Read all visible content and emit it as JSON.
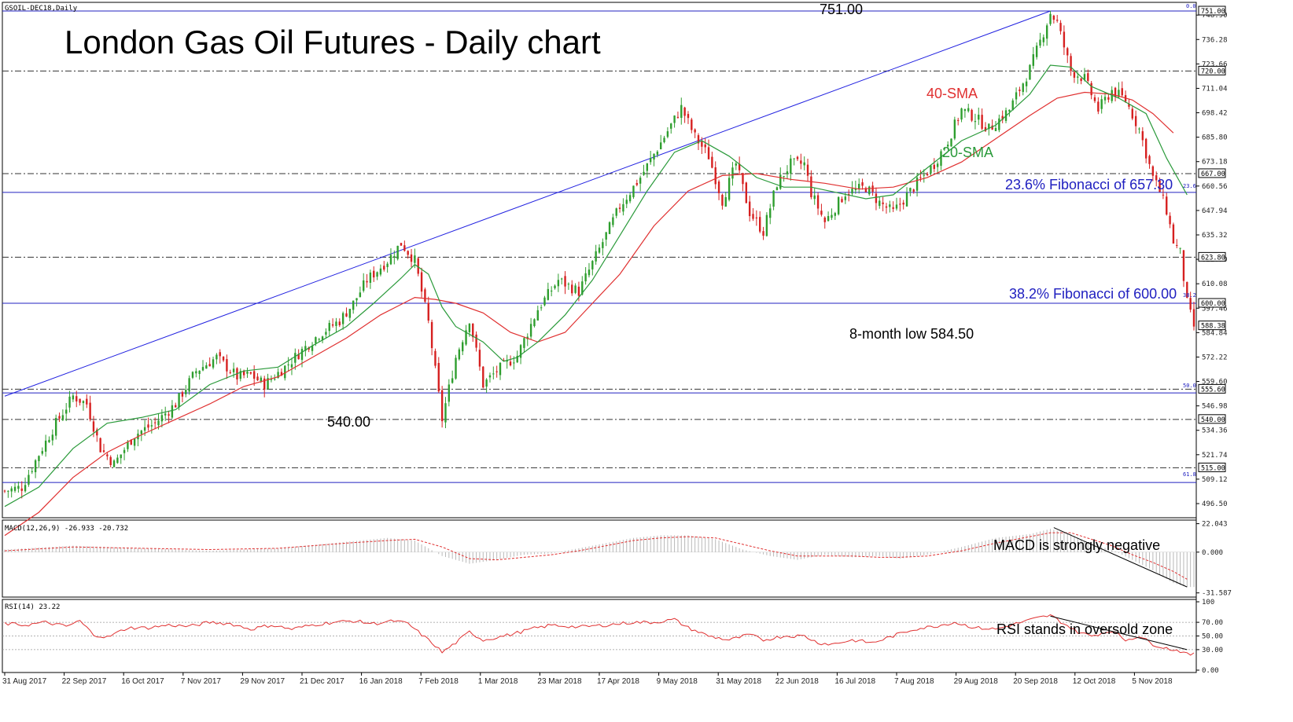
{
  "header": {
    "symbol_label": "GSOIL-DEC18,Daily",
    "title": "London Gas Oil Futures - Daily chart",
    "macd_label": "MACD(12,26,9) -26.933 -20.732",
    "rsi_label": "RSI(14) 23.22"
  },
  "annotations": {
    "high": "751.00",
    "low_feb": "540.00",
    "low_recent": "8-month low 584.50",
    "sma40": "40-SMA",
    "sma20": "20-SMA",
    "fib236": "23.6% Fibonacci of 657.30",
    "fib382": "38.2% Fibonacci of 600.00",
    "macd_note": "MACD is strongly negative",
    "rsi_note": "RSI stands in oversold zone",
    "fib_tag_236": "23.6",
    "fib_tag_382": "38.2",
    "fib_tag_500": "50.0",
    "fib_tag_618": "61.8",
    "fib_tag_0": "0.0"
  },
  "colors": {
    "bull": "#2e9e2e",
    "bear": "#d62020",
    "sma20": "#2a9a3a",
    "sma40": "#e03030",
    "trend": "#2020e0",
    "fib": "#2020c0",
    "macd_signal": "#e03030",
    "rsi": "#e03030",
    "hist": "#b8b8b8"
  },
  "chart_data": [
    {
      "type": "candlestick",
      "title": "London Gas Oil Futures - Daily chart",
      "ylim": [
        490,
        754
      ],
      "price_ticks": [
        "748.90",
        "736.28",
        "723.66",
        "711.04",
        "698.42",
        "685.80",
        "673.18",
        "660.56",
        "647.94",
        "635.32",
        "622.70",
        "610.08",
        "597.46",
        "584.84",
        "572.22",
        "559.60",
        "546.98",
        "534.36",
        "521.74",
        "509.12",
        "496.50"
      ],
      "price_tags": [
        "751.00",
        "720.00",
        "667.00",
        "623.80",
        "600.00",
        "588.38",
        "555.60",
        "540.00",
        "515.00"
      ],
      "x_ticks": [
        "31 Aug 2017",
        "22 Sep 2017",
        "16 Oct 2017",
        "7 Nov 2017",
        "29 Nov 2017",
        "21 Dec 2017",
        "16 Jan 2018",
        "7 Feb 2018",
        "1 Mar 2018",
        "23 Mar 2018",
        "17 Apr 2018",
        "9 May 2018",
        "31 May 2018",
        "22 Jun 2018",
        "16 Jul 2018",
        "7 Aug 2018",
        "29 Aug 2018",
        "20 Sep 2018",
        "12 Oct 2018",
        "5 Nov 2018"
      ],
      "horizontal_levels": [
        751.0,
        720.0,
        667.0,
        623.8,
        600.0,
        555.6,
        540.0,
        515.0
      ],
      "fibonacci_levels": [
        {
          "label": "23.6",
          "value": 657.3
        },
        {
          "label": "38.2",
          "value": 600.0
        },
        {
          "label": "50.0",
          "value": 553.7
        },
        {
          "label": "61.8",
          "value": 507.4
        }
      ],
      "close_path": [
        [
          0,
          503
        ],
        [
          5,
          505
        ],
        [
          10,
          522
        ],
        [
          15,
          538
        ],
        [
          20,
          552
        ],
        [
          24,
          548
        ],
        [
          28,
          525
        ],
        [
          32,
          517
        ],
        [
          38,
          532
        ],
        [
          44,
          538
        ],
        [
          50,
          548
        ],
        [
          56,
          565
        ],
        [
          62,
          572
        ],
        [
          68,
          562
        ],
        [
          72,
          563
        ],
        [
          76,
          558
        ],
        [
          82,
          567
        ],
        [
          86,
          574
        ],
        [
          92,
          584
        ],
        [
          98,
          591
        ],
        [
          102,
          600
        ],
        [
          106,
          612
        ],
        [
          112,
          622
        ],
        [
          116,
          631
        ],
        [
          120,
          622
        ],
        [
          124,
          590
        ],
        [
          126,
          565
        ],
        [
          128,
          540
        ],
        [
          132,
          572
        ],
        [
          136,
          592
        ],
        [
          140,
          558
        ],
        [
          144,
          565
        ],
        [
          150,
          573
        ],
        [
          156,
          597
        ],
        [
          162,
          612
        ],
        [
          168,
          606
        ],
        [
          174,
          628
        ],
        [
          180,
          650
        ],
        [
          186,
          665
        ],
        [
          192,
          683
        ],
        [
          198,
          701
        ],
        [
          202,
          686
        ],
        [
          206,
          676
        ],
        [
          210,
          653
        ],
        [
          214,
          672
        ],
        [
          218,
          647
        ],
        [
          222,
          637
        ],
        [
          226,
          662
        ],
        [
          230,
          672
        ],
        [
          234,
          672
        ],
        [
          236,
          657
        ],
        [
          240,
          642
        ],
        [
          246,
          657
        ],
        [
          252,
          660
        ],
        [
          256,
          652
        ],
        [
          260,
          647
        ],
        [
          266,
          660
        ],
        [
          272,
          672
        ],
        [
          276,
          684
        ],
        [
          280,
          700
        ],
        [
          284,
          696
        ],
        [
          288,
          690
        ],
        [
          294,
          700
        ],
        [
          300,
          721
        ],
        [
          304,
          740
        ],
        [
          306,
          750
        ],
        [
          308,
          745
        ],
        [
          312,
          720
        ],
        [
          316,
          716
        ],
        [
          320,
          700
        ],
        [
          324,
          710
        ],
        [
          328,
          705
        ],
        [
          332,
          690
        ],
        [
          336,
          665
        ],
        [
          338,
          658
        ],
        [
          340,
          648
        ],
        [
          342,
          632
        ],
        [
          344,
          626
        ],
        [
          346,
          600
        ],
        [
          348,
          588
        ]
      ],
      "sma20": [
        [
          0,
          495
        ],
        [
          10,
          505
        ],
        [
          20,
          525
        ],
        [
          30,
          538
        ],
        [
          40,
          541
        ],
        [
          50,
          545
        ],
        [
          60,
          558
        ],
        [
          70,
          565
        ],
        [
          80,
          567
        ],
        [
          90,
          578
        ],
        [
          100,
          588
        ],
        [
          108,
          600
        ],
        [
          116,
          613
        ],
        [
          120,
          620
        ],
        [
          124,
          615
        ],
        [
          128,
          598
        ],
        [
          132,
          588
        ],
        [
          140,
          580
        ],
        [
          146,
          570
        ],
        [
          150,
          572
        ],
        [
          156,
          580
        ],
        [
          164,
          594
        ],
        [
          172,
          612
        ],
        [
          180,
          635
        ],
        [
          188,
          658
        ],
        [
          196,
          678
        ],
        [
          204,
          684
        ],
        [
          212,
          676
        ],
        [
          220,
          665
        ],
        [
          228,
          660
        ],
        [
          236,
          660
        ],
        [
          244,
          657
        ],
        [
          252,
          654
        ],
        [
          260,
          656
        ],
        [
          270,
          670
        ],
        [
          280,
          684
        ],
        [
          290,
          692
        ],
        [
          300,
          708
        ],
        [
          306,
          723
        ],
        [
          312,
          722
        ],
        [
          318,
          712
        ],
        [
          326,
          706
        ],
        [
          334,
          698
        ],
        [
          340,
          675
        ],
        [
          346,
          656
        ]
      ],
      "sma40": [
        [
          0,
          480
        ],
        [
          10,
          492
        ],
        [
          20,
          510
        ],
        [
          30,
          523
        ],
        [
          40,
          532
        ],
        [
          50,
          540
        ],
        [
          60,
          548
        ],
        [
          70,
          557
        ],
        [
          80,
          562
        ],
        [
          90,
          572
        ],
        [
          100,
          582
        ],
        [
          110,
          594
        ],
        [
          120,
          603
        ],
        [
          126,
          602
        ],
        [
          132,
          600
        ],
        [
          140,
          595
        ],
        [
          148,
          585
        ],
        [
          156,
          580
        ],
        [
          164,
          585
        ],
        [
          172,
          600
        ],
        [
          180,
          615
        ],
        [
          190,
          640
        ],
        [
          200,
          658
        ],
        [
          210,
          666
        ],
        [
          220,
          667
        ],
        [
          230,
          664
        ],
        [
          240,
          662
        ],
        [
          250,
          659
        ],
        [
          260,
          660
        ],
        [
          270,
          665
        ],
        [
          280,
          673
        ],
        [
          290,
          685
        ],
        [
          300,
          697
        ],
        [
          308,
          706
        ],
        [
          316,
          709
        ],
        [
          324,
          708
        ],
        [
          330,
          705
        ],
        [
          336,
          698
        ],
        [
          342,
          688
        ]
      ],
      "trendline": [
        [
          0,
          552
        ],
        [
          306,
          751
        ]
      ],
      "markers": {
        "high": 751.0,
        "feb_low": 540.0,
        "recent_low": 584.5
      }
    },
    {
      "type": "histogram",
      "title": "MACD(12,26,9) -26.933 -20.732",
      "ylim": [
        -33,
        23
      ],
      "ticks": [
        "22.043",
        "0.000",
        "-31.587"
      ],
      "macd": [
        [
          0,
          2
        ],
        [
          20,
          5
        ],
        [
          40,
          3
        ],
        [
          60,
          1
        ],
        [
          80,
          3
        ],
        [
          100,
          8
        ],
        [
          112,
          11
        ],
        [
          120,
          9
        ],
        [
          128,
          -3
        ],
        [
          136,
          -9
        ],
        [
          144,
          -6
        ],
        [
          152,
          -2
        ],
        [
          160,
          -1
        ],
        [
          168,
          3
        ],
        [
          176,
          7
        ],
        [
          184,
          11
        ],
        [
          192,
          13
        ],
        [
          200,
          13
        ],
        [
          208,
          10
        ],
        [
          216,
          2
        ],
        [
          224,
          -3
        ],
        [
          232,
          -6
        ],
        [
          240,
          -2
        ],
        [
          248,
          -4
        ],
        [
          256,
          -3
        ],
        [
          262,
          -5
        ],
        [
          270,
          -2
        ],
        [
          280,
          4
        ],
        [
          290,
          11
        ],
        [
          300,
          14
        ],
        [
          306,
          18
        ],
        [
          312,
          14
        ],
        [
          318,
          6
        ],
        [
          324,
          2
        ],
        [
          330,
          -6
        ],
        [
          336,
          -14
        ],
        [
          342,
          -24
        ],
        [
          346,
          -27
        ]
      ],
      "signal": [
        [
          0,
          1
        ],
        [
          20,
          4
        ],
        [
          40,
          3
        ],
        [
          60,
          2
        ],
        [
          80,
          3
        ],
        [
          100,
          7
        ],
        [
          112,
          9
        ],
        [
          120,
          10
        ],
        [
          128,
          4
        ],
        [
          136,
          -5
        ],
        [
          144,
          -6
        ],
        [
          152,
          -4
        ],
        [
          160,
          -2
        ],
        [
          168,
          1
        ],
        [
          176,
          5
        ],
        [
          184,
          9
        ],
        [
          192,
          11
        ],
        [
          200,
          12
        ],
        [
          208,
          11
        ],
        [
          216,
          6
        ],
        [
          224,
          1
        ],
        [
          232,
          -3
        ],
        [
          240,
          -3
        ],
        [
          248,
          -3
        ],
        [
          256,
          -4
        ],
        [
          262,
          -4
        ],
        [
          270,
          -3
        ],
        [
          280,
          1
        ],
        [
          290,
          7
        ],
        [
          300,
          12
        ],
        [
          306,
          15
        ],
        [
          312,
          15
        ],
        [
          318,
          10
        ],
        [
          324,
          5
        ],
        [
          330,
          -2
        ],
        [
          336,
          -8
        ],
        [
          342,
          -15
        ],
        [
          346,
          -21
        ]
      ],
      "divergence_line": [
        [
          307,
          19
        ],
        [
          346,
          -27
        ]
      ]
    },
    {
      "type": "line",
      "title": "RSI(14) 23.22",
      "ylim": [
        0,
        100
      ],
      "ticks": [
        "100",
        "70.00",
        "50.00",
        "30.00",
        "0.00"
      ],
      "levels": [
        70,
        50,
        30
      ],
      "rsi": [
        [
          0,
          68
        ],
        [
          6,
          66
        ],
        [
          12,
          70
        ],
        [
          18,
          64
        ],
        [
          22,
          72
        ],
        [
          26,
          52
        ],
        [
          30,
          48
        ],
        [
          36,
          62
        ],
        [
          42,
          62
        ],
        [
          48,
          66
        ],
        [
          54,
          64
        ],
        [
          60,
          70
        ],
        [
          66,
          68
        ],
        [
          72,
          60
        ],
        [
          78,
          66
        ],
        [
          84,
          60
        ],
        [
          90,
          66
        ],
        [
          96,
          70
        ],
        [
          102,
          72
        ],
        [
          108,
          68
        ],
        [
          114,
          72
        ],
        [
          118,
          68
        ],
        [
          122,
          52
        ],
        [
          126,
          36
        ],
        [
          128,
          26
        ],
        [
          132,
          40
        ],
        [
          136,
          56
        ],
        [
          140,
          44
        ],
        [
          144,
          48
        ],
        [
          148,
          52
        ],
        [
          154,
          60
        ],
        [
          160,
          66
        ],
        [
          168,
          63
        ],
        [
          176,
          66
        ],
        [
          184,
          70
        ],
        [
          190,
          70
        ],
        [
          196,
          74
        ],
        [
          200,
          62
        ],
        [
          206,
          50
        ],
        [
          212,
          44
        ],
        [
          218,
          52
        ],
        [
          222,
          44
        ],
        [
          228,
          50
        ],
        [
          234,
          50
        ],
        [
          238,
          40
        ],
        [
          242,
          38
        ],
        [
          248,
          44
        ],
        [
          254,
          40
        ],
        [
          260,
          50
        ],
        [
          266,
          60
        ],
        [
          272,
          64
        ],
        [
          278,
          70
        ],
        [
          284,
          62
        ],
        [
          290,
          60
        ],
        [
          296,
          68
        ],
        [
          302,
          76
        ],
        [
          306,
          80
        ],
        [
          310,
          68
        ],
        [
          314,
          56
        ],
        [
          318,
          50
        ],
        [
          324,
          58
        ],
        [
          328,
          44
        ],
        [
          332,
          50
        ],
        [
          336,
          38
        ],
        [
          340,
          32
        ],
        [
          344,
          28
        ],
        [
          346,
          23
        ]
      ],
      "divergence_line": [
        [
          306,
          79
        ],
        [
          346,
          30
        ]
      ]
    }
  ]
}
